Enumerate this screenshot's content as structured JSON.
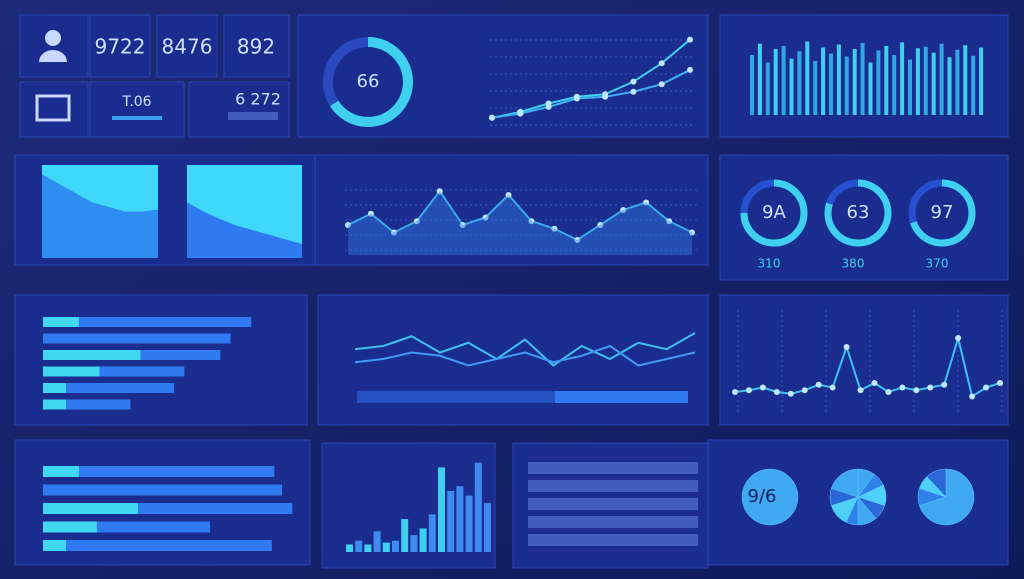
{
  "kpis": [
    "9722",
    "8476",
    "892"
  ],
  "tiles": [
    "T.06",
    "6 272"
  ],
  "gauge": 66,
  "trend": {
    "ylim": [
      0,
      100
    ],
    "series": [
      {
        "color": "#3fd0f0",
        "values": [
          5,
          12,
          22,
          30,
          33,
          48,
          70,
          98
        ]
      },
      {
        "color": "#3fb0f0",
        "values": [
          5,
          10,
          18,
          28,
          30,
          36,
          45,
          62
        ]
      }
    ]
  },
  "barcode": {
    "ylim": [
      0,
      100
    ],
    "values": [
      80,
      95,
      70,
      88,
      92,
      75,
      85,
      98,
      72,
      90,
      82,
      94,
      78,
      88,
      96,
      70,
      86,
      92,
      80,
      97,
      74,
      89,
      91,
      83,
      95,
      77,
      87,
      93,
      79,
      90
    ]
  },
  "areas": {
    "ylim": [
      0,
      100
    ],
    "a": [
      90,
      80,
      70,
      60,
      55,
      50,
      50,
      52
    ],
    "b": [
      60,
      50,
      42,
      35,
      30,
      25,
      20,
      15
    ]
  },
  "peaks": {
    "ylim": [
      0,
      100
    ],
    "values": [
      40,
      55,
      30,
      45,
      85,
      40,
      50,
      80,
      45,
      35,
      20,
      40,
      60,
      70,
      45,
      30
    ]
  },
  "rings": [
    {
      "label": "9A",
      "sub": "310",
      "share": 0.75
    },
    {
      "label": "63",
      "sub": "380",
      "share": 0.8
    },
    {
      "label": "97",
      "sub": "370",
      "share": 0.7
    }
  ],
  "hbars1": {
    "xlim": [
      0,
      100
    ],
    "cyan": [
      14,
      0,
      38,
      22,
      9,
      9
    ],
    "blue": [
      67,
      73,
      31,
      33,
      42,
      25
    ]
  },
  "lines3": {
    "ylim": [
      0,
      100
    ],
    "a": [
      55,
      60,
      75,
      50,
      65,
      40,
      70,
      30,
      60,
      40,
      65,
      55,
      80
    ],
    "b": [
      35,
      40,
      50,
      45,
      30,
      40,
      50,
      35,
      45,
      60,
      30,
      40,
      50
    ]
  },
  "spike": {
    "ylim": [
      0,
      100
    ],
    "values": [
      20,
      22,
      25,
      20,
      18,
      22,
      28,
      25,
      70,
      22,
      30,
      20,
      25,
      22,
      25,
      28,
      80,
      15,
      25,
      30
    ]
  },
  "hbars2": {
    "xlim": [
      0,
      100
    ],
    "cyan": [
      14,
      0,
      37,
      21,
      9
    ],
    "blue": [
      76,
      93,
      60,
      44,
      80
    ]
  },
  "vbars": {
    "ylim": [
      0,
      100
    ],
    "values": [
      8,
      12,
      8,
      22,
      10,
      12,
      35,
      18,
      25,
      40,
      90,
      65,
      70,
      60,
      95,
      52
    ],
    "colors": [
      "#3fd0f0",
      "#3f8af0",
      "#3fd0f0",
      "#3f8af0",
      "#3fd0f0",
      "#3f8af0",
      "#3fd0f0",
      "#3f8af0",
      "#3fd0f0",
      "#3f8af0",
      "#3fd0f0",
      "#3f8af0",
      "#3f8af0",
      "#3f8af0",
      "#3f8af0",
      "#3f8af0"
    ]
  },
  "pies": {
    "label": "9/6",
    "slices": [
      [
        100
      ],
      [
        10,
        8,
        12,
        9,
        11,
        7,
        13,
        10,
        20
      ],
      [
        70,
        10,
        8,
        12
      ]
    ]
  }
}
